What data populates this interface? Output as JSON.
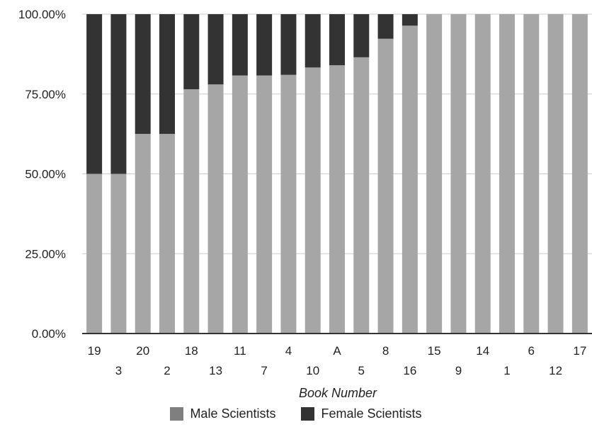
{
  "chart_data": {
    "type": "bar",
    "stacked": true,
    "xlabel": "Book Number",
    "ylabel": "",
    "ylim": [
      0,
      100
    ],
    "yticks": [
      "0.00%",
      "25.00%",
      "50.00%",
      "75.00%",
      "100.00%"
    ],
    "categories": [
      "19",
      "3",
      "20",
      "2",
      "18",
      "13",
      "11",
      "7",
      "4",
      "10",
      "A",
      "5",
      "8",
      "16",
      "15",
      "9",
      "14",
      "1",
      "6",
      "12",
      "17"
    ],
    "series": [
      {
        "name": "Male Scientists",
        "color": "#a6a6a6",
        "values": [
          50.0,
          50.0,
          62.5,
          62.5,
          76.5,
          78.0,
          80.8,
          80.8,
          81.0,
          83.3,
          84.0,
          86.5,
          92.3,
          96.4,
          100,
          100,
          100,
          100,
          100,
          100,
          100
        ]
      },
      {
        "name": "Female Scientists",
        "color": "#333333",
        "values": [
          50.0,
          50.0,
          37.5,
          37.5,
          23.5,
          22.0,
          19.2,
          19.2,
          19.0,
          16.7,
          16.0,
          13.5,
          7.7,
          3.6,
          0,
          0,
          0,
          0,
          0,
          0,
          0
        ]
      }
    ],
    "grid": true,
    "legend_position": "bottom"
  },
  "legend": {
    "items": [
      {
        "label": "Male Scientists",
        "color": "#7f7f7f"
      },
      {
        "label": "Female Scientists",
        "color": "#333333"
      }
    ]
  }
}
